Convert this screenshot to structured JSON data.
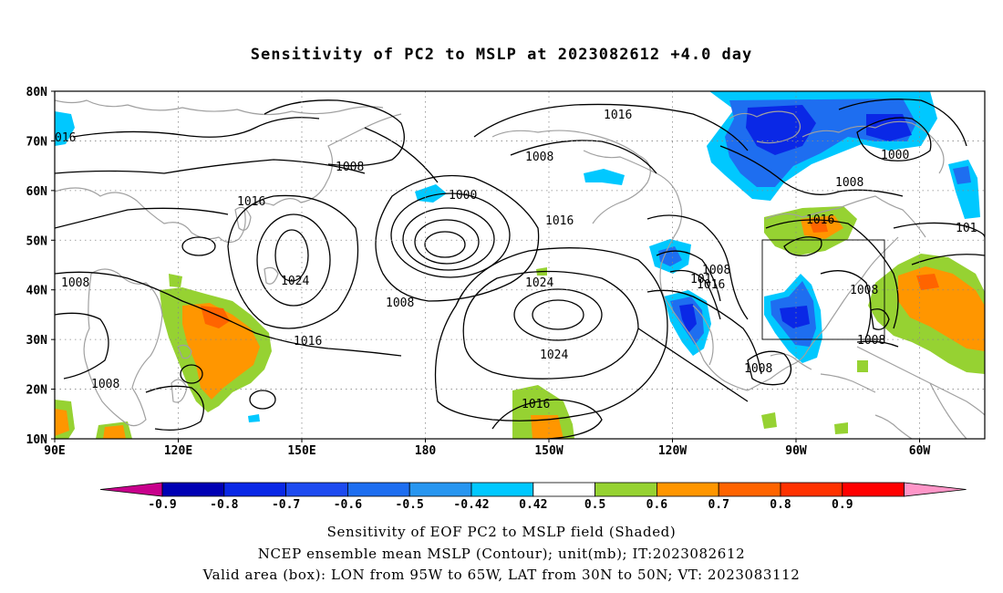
{
  "title": "Sensitivity of PC2 to MSLP at 2023082612 +4.0 day",
  "lat_labels": [
    "80N",
    "70N",
    "60N",
    "50N",
    "40N",
    "30N",
    "20N",
    "10N"
  ],
  "lon_labels": [
    "90E",
    "120E",
    "150E",
    "180",
    "150W",
    "120W",
    "90W",
    "60W"
  ],
  "contour_labels": [
    "016",
    "1008",
    "1016",
    "1024",
    "1016",
    "1008",
    "1008",
    "1016",
    "1000",
    "1008",
    "1008",
    "1016",
    "1024",
    "1024",
    "1016",
    "1008",
    "1016",
    "101",
    "1008",
    "1016",
    "1000",
    "1008",
    "1016",
    "101",
    "1008",
    "1008",
    "1008"
  ],
  "colorbar": {
    "ticks": [
      "-0.9",
      "-0.8",
      "-0.7",
      "-0.6",
      "-0.5",
      "-0.42",
      "0.42",
      "0.5",
      "0.6",
      "0.7",
      "0.8",
      "0.9"
    ],
    "colors": [
      "#c8008c",
      "#0000b4",
      "#0a28e6",
      "#1e4bf0",
      "#1e6ef0",
      "#2896f0",
      "#00c8ff",
      "#ffffff",
      "#96d232",
      "#ff9600",
      "#ff6400",
      "#ff3200",
      "#ff0000",
      "#ff96c8"
    ]
  },
  "shade_colors": {
    "neg_lvl1": "#00c8ff",
    "neg_lvl2": "#1e6ef0",
    "neg_lvl3": "#0a28e6",
    "pos_lvl1": "#96d232",
    "pos_lvl2": "#ff9600",
    "pos_lvl3": "#ff6400"
  },
  "captions": [
    "Sensitivity of EOF PC2 to MSLP field (Shaded)",
    "NCEP ensemble mean MSLP (Contour); unit(mb); IT:2023082612",
    "Valid area (box): LON from 95W to 65W, LAT from 30N to 50N; VT: 2023083112"
  ]
}
